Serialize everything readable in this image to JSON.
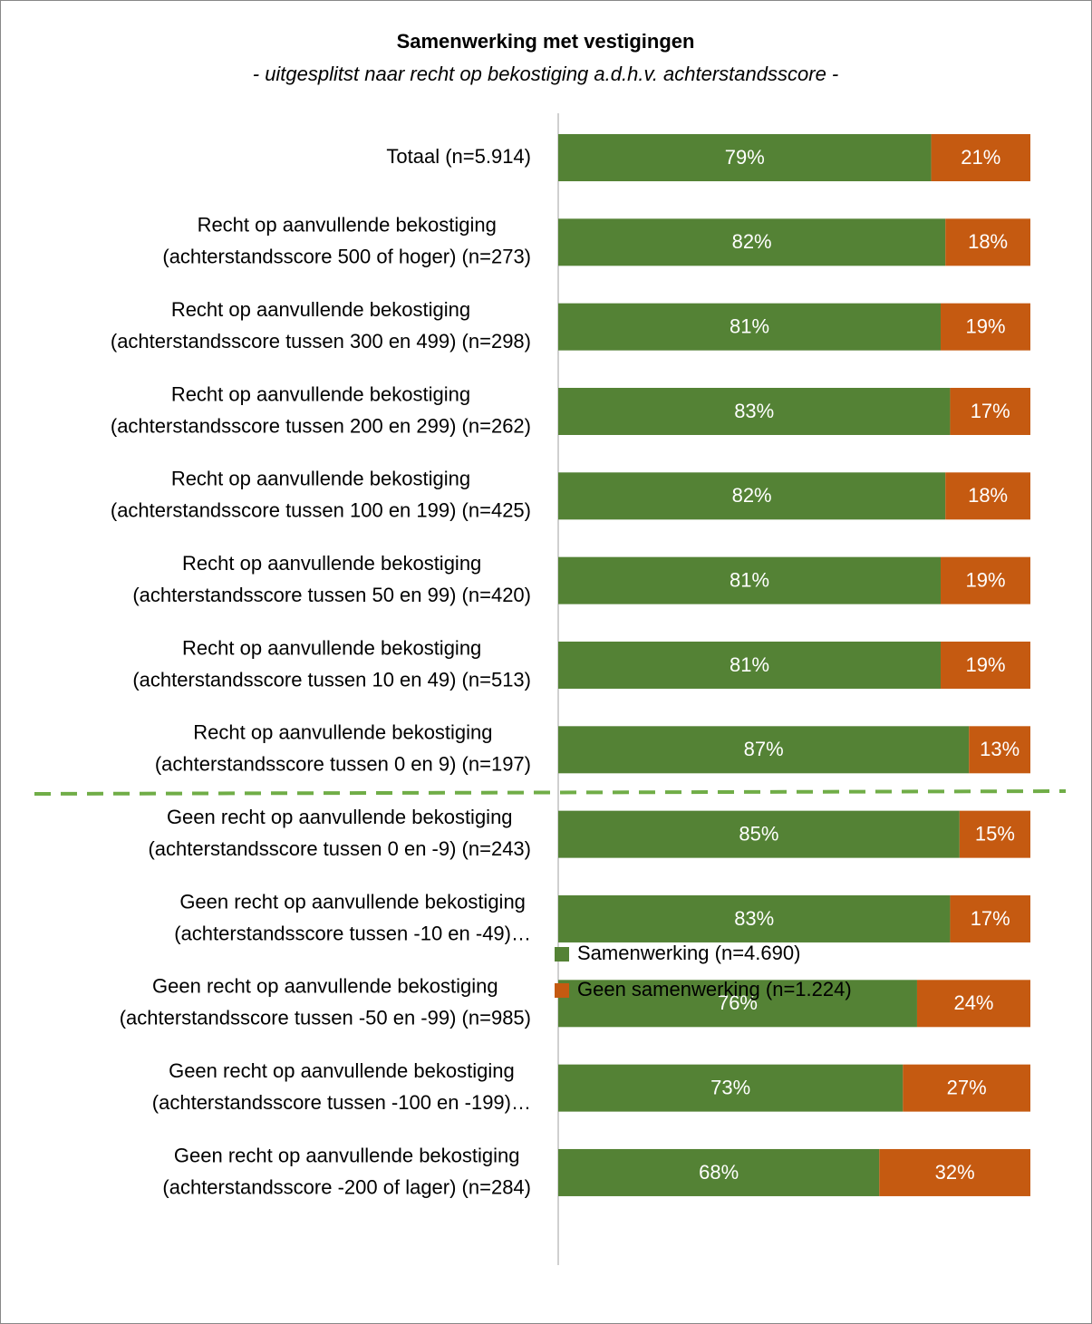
{
  "chart_data": {
    "type": "stacked_bar_horizontal",
    "title": "Samenwerking met vestigingen",
    "subtitle": "- uitgesplitst naar recht op bekostiging a.d.h.v. achterstandsscore -",
    "categories": [
      [
        "Totaal (n=5.914)"
      ],
      [
        "Recht op aanvullende bekostiging",
        "(achterstandsscore 500 of hoger) (n=273)"
      ],
      [
        "Recht op aanvullende bekostiging",
        "(achterstandsscore tussen 300 en 499) (n=298)"
      ],
      [
        "Recht op aanvullende bekostiging",
        "(achterstandsscore tussen 200 en 299) (n=262)"
      ],
      [
        "Recht op aanvullende bekostiging",
        "(achterstandsscore tussen 100 en 199) (n=425)"
      ],
      [
        "Recht op aanvullende bekostiging",
        "(achterstandsscore tussen 50 en 99) (n=420)"
      ],
      [
        "Recht op aanvullende bekostiging",
        "(achterstandsscore tussen 10 en 49) (n=513)"
      ],
      [
        "Recht op aanvullende bekostiging",
        "(achterstandsscore tussen 0 en 9) (n=197)"
      ],
      [
        "Geen recht op aanvullende bekostiging",
        "(achterstandsscore tussen 0 en -9) (n=243)"
      ],
      [
        "Geen recht op aanvullende bekostiging",
        "(achterstandsscore tussen -10 en -49)…"
      ],
      [
        "Geen recht op aanvullende bekostiging",
        "(achterstandsscore tussen -50 en -99) (n=985)"
      ],
      [
        "Geen recht op aanvullende bekostiging",
        "(achterstandsscore tussen -100 en -199)…"
      ],
      [
        "Geen recht op aanvullende bekostiging",
        "(achterstandsscore -200 of lager) (n=284)"
      ]
    ],
    "series": [
      {
        "name": "Samenwerking (n=4.690)",
        "color": "#548235",
        "values": [
          79,
          82,
          81,
          83,
          82,
          81,
          81,
          87,
          85,
          83,
          76,
          73,
          68
        ],
        "value_labels": [
          "79%",
          "82%",
          "81%",
          "83%",
          "82%",
          "81%",
          "81%",
          "87%",
          "85%",
          "83%",
          "76%",
          "73%",
          "68%"
        ]
      },
      {
        "name": "Geen samenwerking (n=1.224)",
        "color": "#c55a11",
        "values": [
          21,
          18,
          19,
          17,
          18,
          19,
          19,
          13,
          15,
          17,
          24,
          27,
          32
        ],
        "value_labels": [
          "21%",
          "18%",
          "19%",
          "17%",
          "18%",
          "19%",
          "19%",
          "13%",
          "15%",
          "17%",
          "24%",
          "27%",
          "32%"
        ]
      }
    ],
    "xlim": [
      0,
      100
    ],
    "legend": "bottom"
  }
}
